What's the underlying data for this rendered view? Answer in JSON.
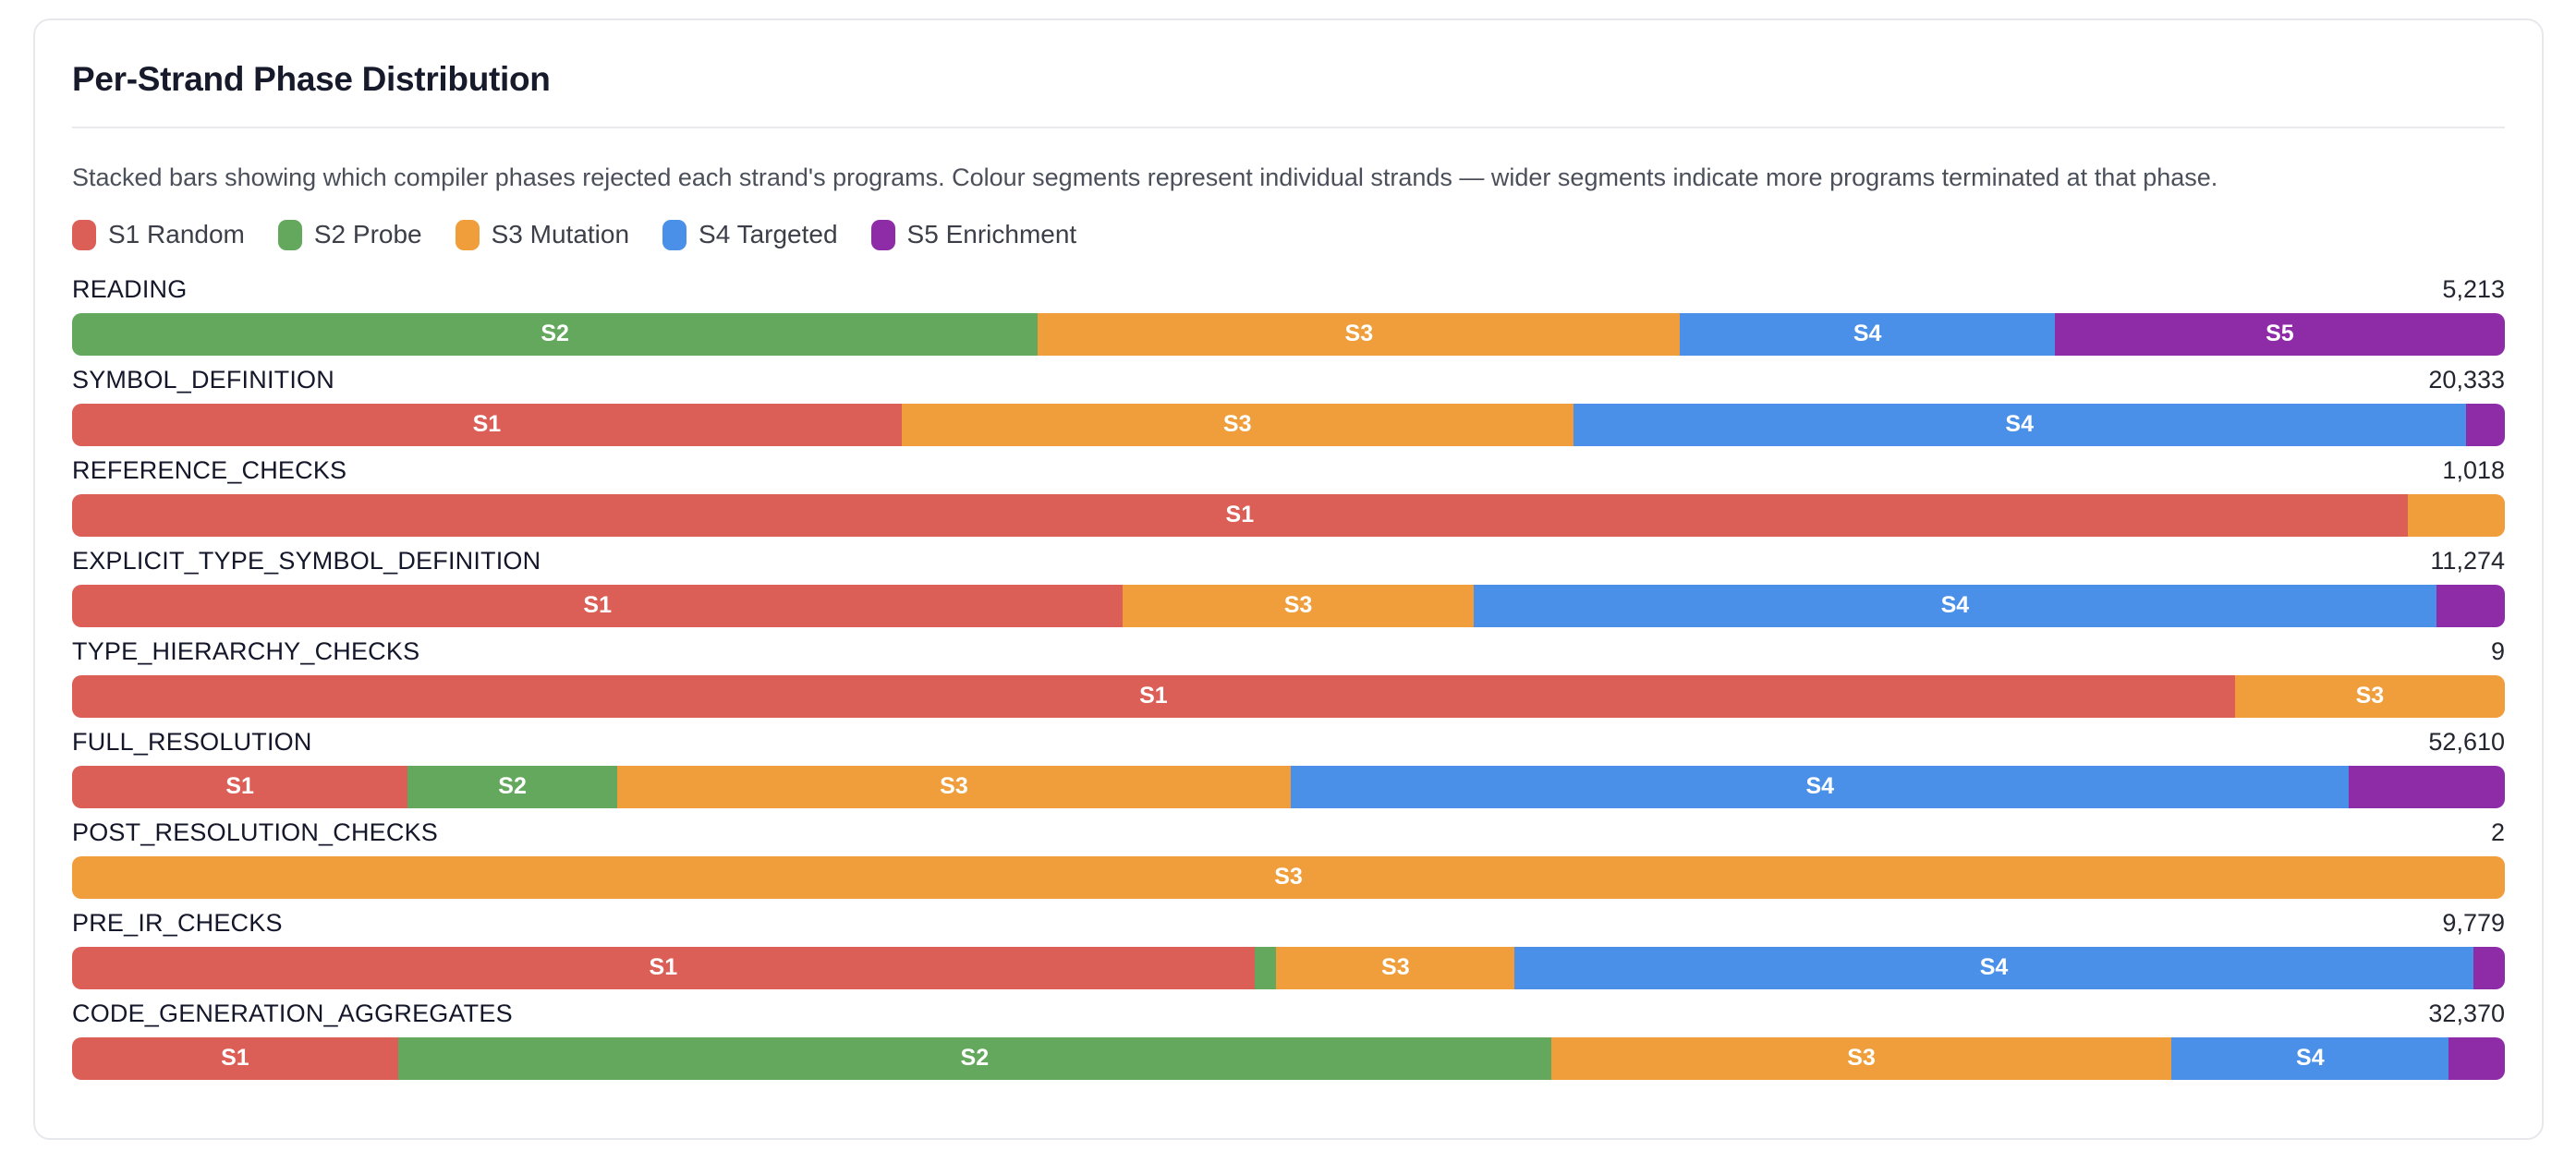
{
  "card": {
    "title": "Per-Strand Phase Distribution",
    "subtitle": "Stacked bars showing which compiler phases rejected each strand's programs. Colour segments represent individual strands — wider segments indicate more programs terminated at that phase."
  },
  "palette": {
    "S1": "#DB5E57",
    "S2": "#63A85C",
    "S3": "#F09E3C",
    "S4": "#4A90E8",
    "S5": "#8E2CA8"
  },
  "legend": [
    {
      "strand": "S1",
      "label": "S1 Random"
    },
    {
      "strand": "S2",
      "label": "S2 Probe"
    },
    {
      "strand": "S3",
      "label": "S3 Mutation"
    },
    {
      "strand": "S4",
      "label": "S4 Targeted"
    },
    {
      "strand": "S5",
      "label": "S5 Enrichment"
    }
  ],
  "chart_data": {
    "type": "bar",
    "variant": "horizontal-stacked-percent",
    "title": "Per-Strand Phase Distribution",
    "legend_position": "top",
    "value_unit": "programs (row total shown at right, segment widths = share of row)",
    "rows": [
      {
        "phase": "READING",
        "total": 5213,
        "total_display": "5,213",
        "segments": [
          {
            "strand": "S2",
            "pct": 39.7,
            "label": "S2"
          },
          {
            "strand": "S3",
            "pct": 26.4,
            "label": "S3"
          },
          {
            "strand": "S4",
            "pct": 15.4,
            "label": "S4"
          },
          {
            "strand": "S5",
            "pct": 18.5,
            "label": "S5"
          }
        ]
      },
      {
        "phase": "SYMBOL_DEFINITION",
        "total": 20333,
        "total_display": "20,333",
        "segments": [
          {
            "strand": "S1",
            "pct": 34.1,
            "label": "S1"
          },
          {
            "strand": "S3",
            "pct": 27.6,
            "label": "S3"
          },
          {
            "strand": "S4",
            "pct": 36.7,
            "label": "S4"
          },
          {
            "strand": "S5",
            "pct": 1.6,
            "label": ""
          }
        ]
      },
      {
        "phase": "REFERENCE_CHECKS",
        "total": 1018,
        "total_display": "1,018",
        "segments": [
          {
            "strand": "S1",
            "pct": 96.0,
            "label": "S1"
          },
          {
            "strand": "S3",
            "pct": 4.0,
            "label": ""
          }
        ]
      },
      {
        "phase": "EXPLICIT_TYPE_SYMBOL_DEFINITION",
        "total": 11274,
        "total_display": "11,274",
        "segments": [
          {
            "strand": "S1",
            "pct": 43.2,
            "label": "S1"
          },
          {
            "strand": "S3",
            "pct": 14.4,
            "label": "S3"
          },
          {
            "strand": "S4",
            "pct": 39.6,
            "label": "S4"
          },
          {
            "strand": "S5",
            "pct": 2.8,
            "label": ""
          }
        ]
      },
      {
        "phase": "TYPE_HIERARCHY_CHECKS",
        "total": 9,
        "total_display": "9",
        "segments": [
          {
            "strand": "S1",
            "pct": 88.9,
            "label": "S1"
          },
          {
            "strand": "S3",
            "pct": 11.1,
            "label": "S3"
          }
        ]
      },
      {
        "phase": "FULL_RESOLUTION",
        "total": 52610,
        "total_display": "52,610",
        "segments": [
          {
            "strand": "S1",
            "pct": 13.8,
            "label": "S1"
          },
          {
            "strand": "S2",
            "pct": 8.6,
            "label": "S2"
          },
          {
            "strand": "S3",
            "pct": 27.7,
            "label": "S3"
          },
          {
            "strand": "S4",
            "pct": 43.5,
            "label": "S4"
          },
          {
            "strand": "S5",
            "pct": 6.4,
            "label": ""
          }
        ]
      },
      {
        "phase": "POST_RESOLUTION_CHECKS",
        "total": 2,
        "total_display": "2",
        "segments": [
          {
            "strand": "S3",
            "pct": 100.0,
            "label": "S3"
          }
        ]
      },
      {
        "phase": "PRE_IR_CHECKS",
        "total": 9779,
        "total_display": "9,779",
        "segments": [
          {
            "strand": "S1",
            "pct": 48.6,
            "label": "S1"
          },
          {
            "strand": "S2",
            "pct": 0.9,
            "label": ""
          },
          {
            "strand": "S3",
            "pct": 9.8,
            "label": "S3"
          },
          {
            "strand": "S4",
            "pct": 39.4,
            "label": "S4"
          },
          {
            "strand": "S5",
            "pct": 1.3,
            "label": ""
          }
        ]
      },
      {
        "phase": "CODE_GENERATION_AGGREGATES",
        "total": 32370,
        "total_display": "32,370",
        "segments": [
          {
            "strand": "S1",
            "pct": 13.4,
            "label": "S1"
          },
          {
            "strand": "S2",
            "pct": 47.4,
            "label": "S2"
          },
          {
            "strand": "S3",
            "pct": 25.5,
            "label": "S3"
          },
          {
            "strand": "S4",
            "pct": 11.4,
            "label": "S4"
          },
          {
            "strand": "S5",
            "pct": 2.3,
            "label": ""
          }
        ]
      }
    ]
  }
}
